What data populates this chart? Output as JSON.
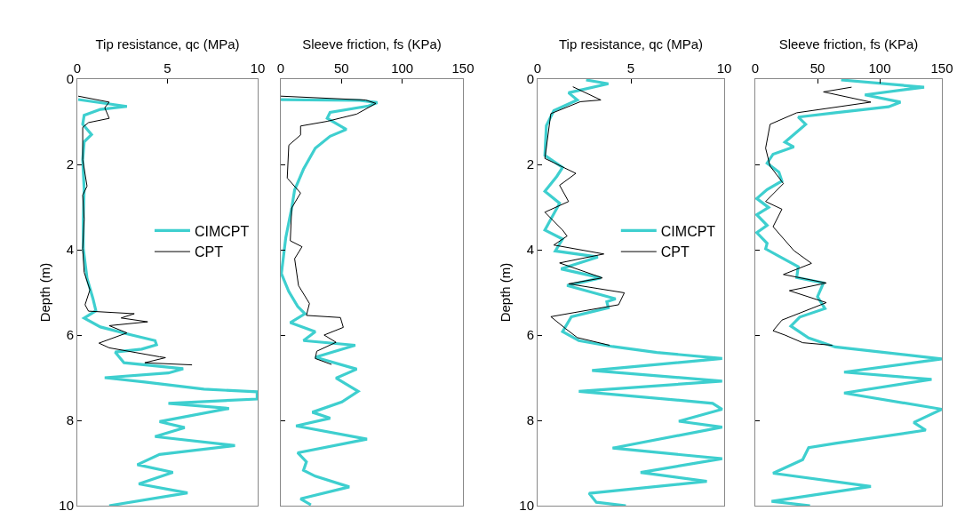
{
  "chart_data": [
    {
      "type": "line",
      "xlabel": "Tip resistance, qc (MPa)",
      "ylabel": "Depth (m)",
      "xlim": [
        0,
        10
      ],
      "xticks": [
        0,
        5,
        10
      ],
      "ylim": [
        10,
        0
      ],
      "yticks": [
        0,
        2,
        4,
        6,
        8,
        10
      ],
      "legend": "right",
      "series": [
        {
          "name": "CIMCPT",
          "color": "#3ecfcf",
          "x": [
            0.05,
            2.75,
            1.28,
            0.38,
            0.3,
            0.79,
            0.38,
            0.3,
            0.38,
            0.33,
            0.33,
            0.54,
            0.87,
            1.03,
            0.38,
            1.28,
            2.92,
            4.31,
            4.39,
            3.57,
            2.1,
            2.59,
            5.87,
            5.05,
            1.52,
            3.74,
            7.02,
            9.97,
            9.97,
            5.05,
            8.41,
            4.56,
            5.95,
            4.31,
            8.74,
            4.56,
            3.33,
            5.3,
            3.41,
            6.11,
            1.77
          ],
          "values": [
            0.48,
            0.64,
            0.71,
            0.85,
            1.06,
            1.3,
            1.47,
            1.89,
            2.58,
            3.28,
            3.97,
            4.67,
            5.15,
            5.43,
            5.6,
            5.81,
            5.99,
            6.13,
            6.23,
            6.33,
            6.4,
            6.65,
            6.79,
            6.89,
            7.0,
            7.1,
            7.27,
            7.33,
            7.5,
            7.6,
            7.72,
            8.03,
            8.17,
            8.38,
            8.59,
            8.8,
            9.04,
            9.22,
            9.49,
            9.7,
            10.0
          ]
        },
        {
          "name": "CPT",
          "color": "#000000",
          "x": [
            0.05,
            1.77,
            1.52,
            1.77,
            0.62,
            0.3,
            0.3,
            0.54,
            0.3,
            0.38,
            0.3,
            0.38,
            0.7,
            0.43,
            0.62,
            3.16,
            2.43,
            3.9,
            1.77,
            2.75,
            1.2,
            1.77,
            4.56,
            4.89,
            3.74,
            6.36
          ],
          "values": [
            0.4,
            0.54,
            0.67,
            0.92,
            1.02,
            1.13,
            1.89,
            2.51,
            2.72,
            3.28,
            3.97,
            4.53,
            4.94,
            5.29,
            5.44,
            5.5,
            5.6,
            5.69,
            5.78,
            5.95,
            6.19,
            6.3,
            6.51,
            6.53,
            6.65,
            6.7
          ]
        }
      ]
    },
    {
      "type": "line",
      "xlabel": "Sleeve friction, fs (KPa)",
      "xlim": [
        0,
        150
      ],
      "xticks": [
        0,
        50,
        100,
        150
      ],
      "ylim": [
        10,
        0
      ],
      "yticks": [
        0,
        2,
        4,
        6,
        8,
        10
      ],
      "tick_labels": "x",
      "series": [
        {
          "color": "#3ecfcf",
          "x": [
            0,
            64.9,
            79.5,
            72.2,
            40.6,
            38.2,
            54,
            40.6,
            28.4,
            18.7,
            11.4,
            9,
            4.1,
            0.5,
            6.6,
            13.9,
            19.9,
            7.8,
            28.4,
            18.7,
            61.3,
            28.4,
            62.5,
            45.5,
            63.7,
            50.3,
            26,
            40.6,
            12.6,
            71,
            13.9,
            21.1,
            18.7,
            28.4,
            56.4,
            16.3,
            24.8
          ],
          "values": [
            0.48,
            0.5,
            0.55,
            0.63,
            0.78,
            0.92,
            1.18,
            1.34,
            1.62,
            2.11,
            2.6,
            3.02,
            3.72,
            4.56,
            4.98,
            5.33,
            5.5,
            5.71,
            5.92,
            6.13,
            6.24,
            6.52,
            6.8,
            7.01,
            7.32,
            7.57,
            7.81,
            7.95,
            8.13,
            8.44,
            8.76,
            8.97,
            9.17,
            9.31,
            9.56,
            9.84,
            9.98
          ]
        },
        {
          "color": "#000000",
          "x": [
            0,
            69.8,
            78.3,
            62.5,
            38.2,
            16.3,
            16.3,
            6.6,
            5.3,
            16.3,
            9,
            7.8,
            17.5,
            11.4,
            14.6,
            23.6,
            21.1,
            49.1,
            51.5,
            35.7,
            45.5,
            29.6,
            28.4,
            41.8
          ],
          "values": [
            0.4,
            0.49,
            0.57,
            0.82,
            0.99,
            1.1,
            1.31,
            1.55,
            2.32,
            2.67,
            3.02,
            3.79,
            3.93,
            4.21,
            4.84,
            5.26,
            5.54,
            5.59,
            5.82,
            6,
            6.17,
            6.38,
            6.55,
            6.69
          ]
        }
      ]
    },
    {
      "type": "line",
      "xlabel": "Tip resistance, qc (MPa)",
      "ylabel": "Depth (m)",
      "xlim": [
        0,
        10
      ],
      "xticks": [
        0,
        5,
        10
      ],
      "ylim": [
        10,
        0
      ],
      "yticks": [
        0,
        2,
        4,
        6,
        8,
        10
      ],
      "legend": "right",
      "series": [
        {
          "name": "CIMCPT",
          "color": "#3ecfcf",
          "x": [
            2.6,
            3.79,
            1.66,
            2.13,
            0.87,
            0.47,
            0.39,
            1.34,
            1.03,
            0.39,
            1.18,
            0.39,
            1.34,
            0.95,
            3.23,
            1.26,
            3.39,
            1.58,
            4.18,
            3.71,
            3.79,
            1.81,
            1.34,
            2.21,
            4.02,
            6.39,
            9.89,
            2.92,
            9.89,
            2.21,
            9.38,
            9.89,
            7.57,
            9.89,
            4.02,
            9.89,
            5.52,
            9.07,
            2.76,
            3.15,
            4.73
          ],
          "values": [
            0.02,
            0.11,
            0.32,
            0.49,
            0.74,
            1.09,
            1.79,
            2.07,
            2.28,
            2.63,
            2.91,
            3.54,
            3.75,
            4.03,
            4.17,
            4.45,
            4.66,
            4.84,
            5.15,
            5.22,
            5.36,
            5.57,
            5.92,
            6.13,
            6.27,
            6.41,
            6.55,
            6.83,
            7.08,
            7.32,
            7.6,
            7.74,
            8.02,
            8.16,
            8.65,
            8.9,
            9.22,
            9.43,
            9.71,
            9.92,
            10
          ]
        },
        {
          "name": "CPT",
          "color": "#000000",
          "x": [
            1.89,
            3.39,
            2.29,
            0.71,
            0.39,
            0.87,
            2.05,
            1.18,
            1.66,
            0.39,
            1.34,
            1.58,
            0.87,
            3.55,
            1.18,
            3.47,
            1.66,
            4.65,
            4.34,
            0.71,
            1.5,
            2.13,
            3.86
          ],
          "values": [
            0.18,
            0.49,
            0.53,
            0.81,
            1.86,
            1.96,
            2.21,
            2.49,
            2.87,
            3.12,
            3.54,
            3.68,
            3.89,
            4.1,
            4.31,
            4.66,
            4.8,
            5.01,
            5.29,
            5.57,
            5.85,
            6.06,
            6.24
          ]
        }
      ]
    },
    {
      "type": "line",
      "xlabel": "Sleeve friction, fs (KPa)",
      "xlim": [
        0,
        150
      ],
      "xticks": [
        0,
        50,
        100,
        150
      ],
      "ylim": [
        10,
        0
      ],
      "yticks": [
        0,
        2,
        4,
        6,
        8,
        10
      ],
      "tick_labels": "x",
      "series": [
        {
          "color": "#3ecfcf",
          "x": [
            69,
            135.7,
            88.1,
            116.7,
            107.1,
            64.3,
            34.5,
            40.5,
            23.8,
            31,
            14.3,
            9.5,
            19,
            21.4,
            9.5,
            1.2,
            10.7,
            1.2,
            9.5,
            1.2,
            9.5,
            8.3,
            21.4,
            34.5,
            33.3,
            54.8,
            50,
            56,
            35.7,
            28.6,
            42.9,
            64.3,
            150,
            71.4,
            141.7,
            71.4,
            150,
            127.4,
            137,
            64.3,
            42.9,
            38.1,
            14.3,
            92.9,
            13.1,
            44
          ],
          "values": [
            0.02,
            0.19,
            0.37,
            0.54,
            0.65,
            0.79,
            0.89,
            1.06,
            1.48,
            1.59,
            1.76,
            1.97,
            2.18,
            2.39,
            2.59,
            2.8,
            3.01,
            3.18,
            3.43,
            3.6,
            3.85,
            3.98,
            4.19,
            4.4,
            4.65,
            4.78,
            5.1,
            5.38,
            5.58,
            5.79,
            6.07,
            6.28,
            6.56,
            6.87,
            7.04,
            7.36,
            7.74,
            8.05,
            8.23,
            8.54,
            8.64,
            8.92,
            9.24,
            9.55,
            9.9,
            10
          ]
        },
        {
          "color": "#000000",
          "x": [
            77.4,
            54.8,
            92.9,
            33.3,
            11.9,
            8.3,
            11.9,
            22.6,
            8.3,
            21.4,
            14.3,
            31,
            45.2,
            22.6,
            57.1,
            27.4,
            57.1,
            21.4,
            14.3,
            23.8,
            38.1,
            61.9
          ],
          "values": [
            0.19,
            0.3,
            0.54,
            0.79,
            1.06,
            1.62,
            2.04,
            2.45,
            2.87,
            3.05,
            3.46,
            4.02,
            4.32,
            4.58,
            4.78,
            4.96,
            5.24,
            5.65,
            5.9,
            6,
            6.18,
            6.24
          ]
        }
      ]
    }
  ]
}
